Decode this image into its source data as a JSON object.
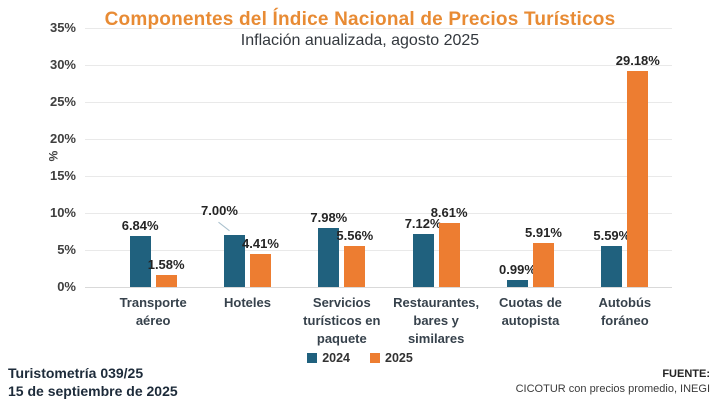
{
  "title": "Componentes del Índice Nacional de Precios Turísticos",
  "subtitle": "Inflación anualizada, agosto 2025",
  "footer": {
    "left_line1": "Turistometría 039/25",
    "left_line2": "15 de septiembre de 2025",
    "right_line1": "FUENTE:",
    "right_line2": "CICOTUR con precios promedio, INEGI"
  },
  "colors": {
    "title": "#E88B34",
    "series_2024": "#20617E",
    "series_2025": "#ED7D31",
    "grid": "#E9E9E9",
    "axis_text": "#3F3F3F",
    "value_label": "#252525",
    "footer_text": "#1D2B3A"
  },
  "chart_data": {
    "type": "bar",
    "title": "Componentes del Índice Nacional de Precios Turísticos",
    "subtitle": "Inflación anualizada, agosto 2025",
    "xlabel": "",
    "ylabel": "%",
    "ylim": [
      0,
      35
    ],
    "ytick_step": 5,
    "ytick_suffix": "%",
    "grid": true,
    "legend_position": "bottom",
    "value_label_format": "0.00%",
    "categories": [
      "Transporte aéreo",
      "Hoteles",
      "Servicios turísticos en paquete",
      "Restaurantes, bares y similares",
      "Cuotas de autopista",
      "Autobús foráneo"
    ],
    "categories_lines": [
      [
        "Transporte",
        "aéreo"
      ],
      [
        "Hoteles"
      ],
      [
        "Servicios",
        "turísticos en",
        "paquete"
      ],
      [
        "Restaurantes,",
        "bares y",
        "similares"
      ],
      [
        "Cuotas de",
        "autopista"
      ],
      [
        "Autobús",
        "foráneo"
      ]
    ],
    "series": [
      {
        "name": "2024",
        "color": "#20617E",
        "values": [
          6.84,
          7.0,
          7.98,
          7.12,
          0.99,
          5.59
        ]
      },
      {
        "name": "2025",
        "color": "#ED7D31",
        "values": [
          1.58,
          4.41,
          5.56,
          8.61,
          5.91,
          29.18
        ]
      }
    ]
  }
}
